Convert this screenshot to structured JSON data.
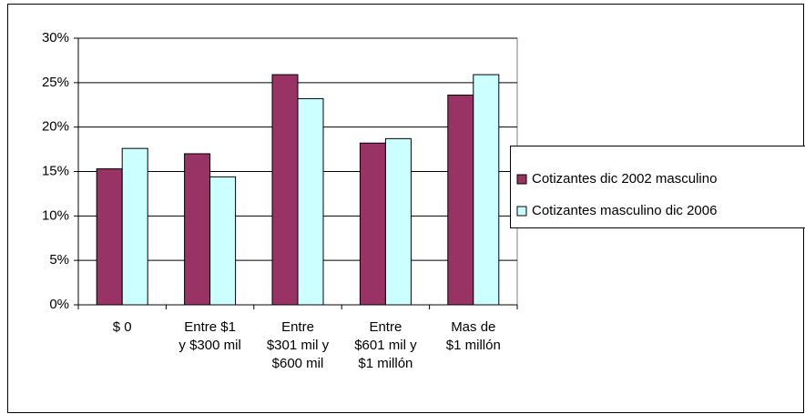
{
  "chart_data": {
    "type": "bar",
    "categories": [
      "$ 0",
      "Entre $1\ny $300 mil",
      "Entre\n$301 mil y\n$600 mil",
      "Entre\n$601 mil y\n$1 millón",
      "Mas de\n$1 millón"
    ],
    "series": [
      {
        "name": "Cotizantes dic 2002 masculino",
        "color": "#993366",
        "values": [
          15.3,
          17.0,
          25.9,
          18.2,
          23.6
        ]
      },
      {
        "name": "Cotizantes masculino dic 2006",
        "color": "#ccffff",
        "values": [
          17.6,
          14.4,
          23.2,
          18.7,
          25.9
        ]
      }
    ],
    "ylim": [
      0,
      30
    ],
    "yticks": [
      {
        "value": 0,
        "label": "0%"
      },
      {
        "value": 5,
        "label": "5%"
      },
      {
        "value": 10,
        "label": "10%"
      },
      {
        "value": 15,
        "label": "15%"
      },
      {
        "value": 20,
        "label": "20%"
      },
      {
        "value": 25,
        "label": "25%"
      },
      {
        "value": 30,
        "label": "30%"
      }
    ],
    "grid": true,
    "legend": "right"
  }
}
